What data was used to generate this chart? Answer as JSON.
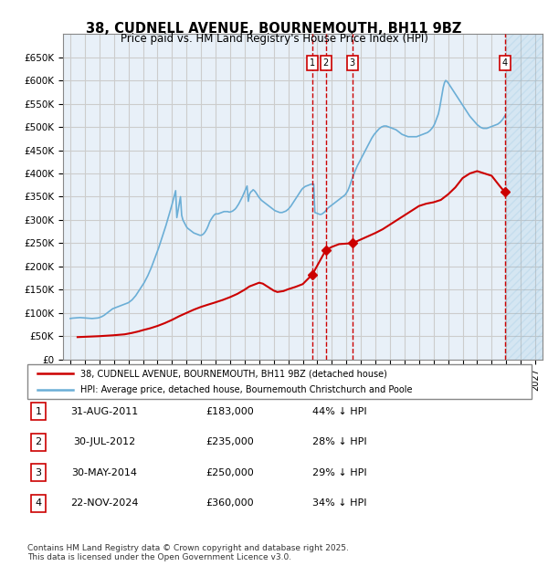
{
  "title_line1": "38, CUDNELL AVENUE, BOURNEMOUTH, BH11 9BZ",
  "title_line2": "Price paid vs. HM Land Registry's House Price Index (HPI)",
  "xlabel": "",
  "ylabel": "",
  "ylim": [
    0,
    700000
  ],
  "yticks": [
    0,
    50000,
    100000,
    150000,
    200000,
    250000,
    300000,
    350000,
    400000,
    450000,
    500000,
    550000,
    600000,
    650000
  ],
  "ytick_labels": [
    "£0",
    "£50K",
    "£100K",
    "£150K",
    "£200K",
    "£250K",
    "£300K",
    "£350K",
    "£400K",
    "£450K",
    "£500K",
    "£550K",
    "£600K",
    "£650K"
  ],
  "xlim_left": 1994.5,
  "xlim_right": 2027.5,
  "xticks": [
    1995,
    1996,
    1997,
    1998,
    1999,
    2000,
    2001,
    2002,
    2003,
    2004,
    2005,
    2006,
    2007,
    2008,
    2009,
    2010,
    2011,
    2012,
    2013,
    2014,
    2015,
    2016,
    2017,
    2018,
    2019,
    2020,
    2021,
    2022,
    2023,
    2024,
    2025,
    2026,
    2027
  ],
  "hpi_color": "#6baed6",
  "price_color": "#cc0000",
  "grid_color": "#cccccc",
  "bg_color": "#e8f0f8",
  "legend_border_color": "#888888",
  "transaction_dates": [
    2011.667,
    2012.583,
    2014.417,
    2024.9
  ],
  "transaction_prices": [
    183000,
    235000,
    250000,
    360000
  ],
  "transaction_labels": [
    "1",
    "2",
    "3",
    "4"
  ],
  "vline_color": "#cc0000",
  "vline_style": "--",
  "hpi_x": [
    1995,
    1995.083,
    1995.167,
    1995.25,
    1995.333,
    1995.417,
    1995.5,
    1995.583,
    1995.667,
    1995.75,
    1995.833,
    1995.917,
    1996,
    1996.083,
    1996.167,
    1996.25,
    1996.333,
    1996.417,
    1996.5,
    1996.583,
    1996.667,
    1996.75,
    1996.833,
    1996.917,
    1997,
    1997.083,
    1997.167,
    1997.25,
    1997.333,
    1997.417,
    1997.5,
    1997.583,
    1997.667,
    1997.75,
    1997.833,
    1997.917,
    1998,
    1998.083,
    1998.167,
    1998.25,
    1998.333,
    1998.417,
    1998.5,
    1998.583,
    1998.667,
    1998.75,
    1998.833,
    1998.917,
    1999,
    1999.083,
    1999.167,
    1999.25,
    1999.333,
    1999.417,
    1999.5,
    1999.583,
    1999.667,
    1999.75,
    1999.833,
    1999.917,
    2000,
    2000.083,
    2000.167,
    2000.25,
    2000.333,
    2000.417,
    2000.5,
    2000.583,
    2000.667,
    2000.75,
    2000.833,
    2000.917,
    2001,
    2001.083,
    2001.167,
    2001.25,
    2001.333,
    2001.417,
    2001.5,
    2001.583,
    2001.667,
    2001.75,
    2001.833,
    2001.917,
    2002,
    2002.083,
    2002.167,
    2002.25,
    2002.333,
    2002.417,
    2002.5,
    2002.583,
    2002.667,
    2002.75,
    2002.833,
    2002.917,
    2003,
    2003.083,
    2003.167,
    2003.25,
    2003.333,
    2003.417,
    2003.5,
    2003.583,
    2003.667,
    2003.75,
    2003.833,
    2003.917,
    2004,
    2004.083,
    2004.167,
    2004.25,
    2004.333,
    2004.417,
    2004.5,
    2004.583,
    2004.667,
    2004.75,
    2004.833,
    2004.917,
    2005,
    2005.083,
    2005.167,
    2005.25,
    2005.333,
    2005.417,
    2005.5,
    2005.583,
    2005.667,
    2005.75,
    2005.833,
    2005.917,
    2006,
    2006.083,
    2006.167,
    2006.25,
    2006.333,
    2006.417,
    2006.5,
    2006.583,
    2006.667,
    2006.75,
    2006.833,
    2006.917,
    2007,
    2007.083,
    2007.167,
    2007.25,
    2007.333,
    2007.417,
    2007.5,
    2007.583,
    2007.667,
    2007.75,
    2007.833,
    2007.917,
    2008,
    2008.083,
    2008.167,
    2008.25,
    2008.333,
    2008.417,
    2008.5,
    2008.583,
    2008.667,
    2008.75,
    2008.833,
    2008.917,
    2009,
    2009.083,
    2009.167,
    2009.25,
    2009.333,
    2009.417,
    2009.5,
    2009.583,
    2009.667,
    2009.75,
    2009.833,
    2009.917,
    2010,
    2010.083,
    2010.167,
    2010.25,
    2010.333,
    2010.417,
    2010.5,
    2010.583,
    2010.667,
    2010.75,
    2010.833,
    2010.917,
    2011,
    2011.083,
    2011.167,
    2011.25,
    2011.333,
    2011.417,
    2011.5,
    2011.583,
    2011.667,
    2011.75,
    2011.833,
    2011.917,
    2012,
    2012.083,
    2012.167,
    2012.25,
    2012.333,
    2012.417,
    2012.5,
    2012.583,
    2012.667,
    2012.75,
    2012.833,
    2012.917,
    2013,
    2013.083,
    2013.167,
    2013.25,
    2013.333,
    2013.417,
    2013.5,
    2013.583,
    2013.667,
    2013.75,
    2013.833,
    2013.917,
    2014,
    2014.083,
    2014.167,
    2014.25,
    2014.333,
    2014.417,
    2014.5,
    2014.583,
    2014.667,
    2014.75,
    2014.833,
    2014.917,
    2015,
    2015.083,
    2015.167,
    2015.25,
    2015.333,
    2015.417,
    2015.5,
    2015.583,
    2015.667,
    2015.75,
    2015.833,
    2015.917,
    2016,
    2016.083,
    2016.167,
    2016.25,
    2016.333,
    2016.417,
    2016.5,
    2016.583,
    2016.667,
    2016.75,
    2016.833,
    2016.917,
    2017,
    2017.083,
    2017.167,
    2017.25,
    2017.333,
    2017.417,
    2017.5,
    2017.583,
    2017.667,
    2017.75,
    2017.833,
    2017.917,
    2018,
    2018.083,
    2018.167,
    2018.25,
    2018.333,
    2018.417,
    2018.5,
    2018.583,
    2018.667,
    2018.75,
    2018.833,
    2018.917,
    2019,
    2019.083,
    2019.167,
    2019.25,
    2019.333,
    2019.417,
    2019.5,
    2019.583,
    2019.667,
    2019.75,
    2019.833,
    2019.917,
    2020,
    2020.083,
    2020.167,
    2020.25,
    2020.333,
    2020.417,
    2020.5,
    2020.583,
    2020.667,
    2020.75,
    2020.833,
    2020.917,
    2021,
    2021.083,
    2021.167,
    2021.25,
    2021.333,
    2021.417,
    2021.5,
    2021.583,
    2021.667,
    2021.75,
    2021.833,
    2021.917,
    2022,
    2022.083,
    2022.167,
    2022.25,
    2022.333,
    2022.417,
    2022.5,
    2022.583,
    2022.667,
    2022.75,
    2022.833,
    2022.917,
    2023,
    2023.083,
    2023.167,
    2023.25,
    2023.333,
    2023.417,
    2023.5,
    2023.583,
    2023.667,
    2023.75,
    2023.833,
    2023.917,
    2024,
    2024.083,
    2024.167,
    2024.25,
    2024.333,
    2024.417,
    2024.5,
    2024.583,
    2024.667,
    2024.75,
    2024.833,
    2024.917
  ],
  "hpi_y": [
    88000,
    88500,
    88800,
    89000,
    89200,
    89400,
    89600,
    89800,
    90000,
    89800,
    89600,
    89400,
    89200,
    89000,
    88800,
    88600,
    88400,
    88200,
    88000,
    88200,
    88400,
    88600,
    88800,
    89200,
    90000,
    91000,
    92000,
    93500,
    95000,
    97000,
    99000,
    101000,
    103000,
    105000,
    107000,
    109000,
    110000,
    111000,
    112000,
    113000,
    114000,
    115000,
    116000,
    117000,
    118000,
    119000,
    120000,
    121000,
    122000,
    124000,
    126000,
    128000,
    131000,
    134000,
    137000,
    141000,
    145000,
    149000,
    153000,
    157000,
    161000,
    165000,
    170000,
    175000,
    180000,
    186000,
    192000,
    198000,
    205000,
    212000,
    219000,
    226000,
    233000,
    240000,
    248000,
    256000,
    264000,
    272000,
    280000,
    288000,
    297000,
    306000,
    315000,
    324000,
    333000,
    343000,
    353000,
    363000,
    305000,
    320000,
    335000,
    350000,
    310000,
    300000,
    295000,
    290000,
    285000,
    282000,
    280000,
    278000,
    276000,
    274000,
    272000,
    271000,
    270000,
    269000,
    268000,
    267000,
    267000,
    268000,
    270000,
    273000,
    277000,
    282000,
    288000,
    295000,
    300000,
    304000,
    308000,
    311000,
    313000,
    313000,
    313000,
    314000,
    315000,
    316000,
    317000,
    318000,
    318000,
    318000,
    318000,
    317000,
    317000,
    318000,
    319000,
    321000,
    323000,
    326000,
    330000,
    334000,
    339000,
    344000,
    349000,
    355000,
    361000,
    367000,
    373000,
    340000,
    355000,
    360000,
    362000,
    365000,
    363000,
    360000,
    356000,
    352000,
    348000,
    345000,
    342000,
    340000,
    338000,
    336000,
    334000,
    332000,
    330000,
    328000,
    326000,
    324000,
    322000,
    320000,
    319000,
    318000,
    317000,
    316000,
    316000,
    316000,
    317000,
    318000,
    319000,
    321000,
    323000,
    326000,
    329000,
    333000,
    337000,
    341000,
    345000,
    349000,
    353000,
    357000,
    361000,
    365000,
    368000,
    370000,
    372000,
    373000,
    374000,
    375000,
    376000,
    377000,
    377000,
    377000,
    316000,
    315000,
    314000,
    313000,
    312000,
    312000,
    313000,
    315000,
    317000,
    320000,
    323000,
    326000,
    328000,
    330000,
    332000,
    334000,
    336000,
    338000,
    340000,
    342000,
    344000,
    346000,
    348000,
    350000,
    352000,
    354000,
    358000,
    362000,
    368000,
    375000,
    383000,
    390000,
    397000,
    404000,
    410000,
    416000,
    421000,
    426000,
    431000,
    436000,
    441000,
    446000,
    451000,
    456000,
    461000,
    466000,
    471000,
    476000,
    480000,
    484000,
    487000,
    490000,
    493000,
    496000,
    498000,
    500000,
    501000,
    502000,
    502000,
    502000,
    501000,
    500000,
    499000,
    498000,
    497000,
    496000,
    495000,
    494000,
    492000,
    490000,
    488000,
    486000,
    484000,
    483000,
    482000,
    481000,
    480000,
    479000,
    479000,
    479000,
    479000,
    479000,
    479000,
    479000,
    479000,
    480000,
    481000,
    482000,
    483000,
    484000,
    485000,
    486000,
    487000,
    488000,
    490000,
    492000,
    495000,
    498000,
    502000,
    507000,
    514000,
    521000,
    528000,
    540000,
    555000,
    570000,
    585000,
    595000,
    600000,
    598000,
    595000,
    591000,
    587000,
    583000,
    579000,
    575000,
    571000,
    567000,
    563000,
    559000,
    555000,
    551000,
    547000,
    543000,
    539000,
    535000,
    531000,
    527000,
    523000,
    520000,
    517000,
    514000,
    511000,
    508000,
    505000,
    503000,
    501000,
    499000,
    498000,
    497000,
    497000,
    497000,
    497000,
    498000,
    499000,
    500000,
    501000,
    502000,
    503000,
    504000,
    505000,
    506000,
    508000,
    510000,
    513000,
    516000,
    520000,
    524000,
    528000,
    532000,
    536000,
    540000,
    544000,
    548000,
    550000,
    548000,
    545000,
    542000
  ],
  "price_x": [
    1995.5,
    1997.0,
    1997.5,
    1998.0,
    1998.75,
    1999.25,
    1999.667,
    2000.0,
    2000.5,
    2001.0,
    2001.5,
    2002.0,
    2002.5,
    2003.0,
    2003.5,
    2004.0,
    2004.5,
    2004.917,
    2005.5,
    2006.0,
    2006.5,
    2007.0,
    2007.333,
    2007.75,
    2008.0,
    2008.25,
    2008.5,
    2008.75,
    2009.0,
    2009.25,
    2009.667,
    2010.0,
    2010.5,
    2011.0,
    2011.667,
    2012.583,
    2013.0,
    2013.5,
    2014.417,
    2015.0,
    2015.5,
    2016.0,
    2016.5,
    2017.0,
    2017.5,
    2018.0,
    2018.5,
    2019.0,
    2019.5,
    2020.0,
    2020.5,
    2021.0,
    2021.5,
    2022.0,
    2022.5,
    2023.0,
    2023.5,
    2024.0,
    2024.5,
    2024.9
  ],
  "price_y": [
    48000,
    50000,
    51000,
    52000,
    54000,
    57000,
    60000,
    63000,
    67000,
    72000,
    78000,
    85000,
    93000,
    100000,
    107000,
    113000,
    118000,
    122000,
    128000,
    134000,
    141000,
    150000,
    157000,
    162000,
    165000,
    163000,
    158000,
    153000,
    148000,
    145000,
    147000,
    151000,
    156000,
    162000,
    183000,
    235000,
    242000,
    248000,
    250000,
    258000,
    265000,
    272000,
    280000,
    290000,
    300000,
    310000,
    320000,
    330000,
    335000,
    338000,
    343000,
    355000,
    370000,
    390000,
    400000,
    405000,
    400000,
    395000,
    375000,
    360000
  ],
  "table_entries": [
    {
      "num": "1",
      "date": "31-AUG-2011",
      "price": "£183,000",
      "pct": "44% ↓ HPI"
    },
    {
      "num": "2",
      "date": "30-JUL-2012",
      "price": "£235,000",
      "pct": "28% ↓ HPI"
    },
    {
      "num": "3",
      "date": "30-MAY-2014",
      "price": "£250,000",
      "pct": "29% ↓ HPI"
    },
    {
      "num": "4",
      "date": "22-NOV-2024",
      "price": "£360,000",
      "pct": "34% ↓ HPI"
    }
  ],
  "legend_text_1": "38, CUDNELL AVENUE, BOURNEMOUTH, BH11 9BZ (detached house)",
  "legend_text_2": "HPI: Average price, detached house, Bournemouth Christchurch and Poole",
  "footer_text": "Contains HM Land Registry data © Crown copyright and database right 2025.\nThis data is licensed under the Open Government Licence v3.0.",
  "hatch_color": "#6baed6",
  "hatch_pattern": "////"
}
